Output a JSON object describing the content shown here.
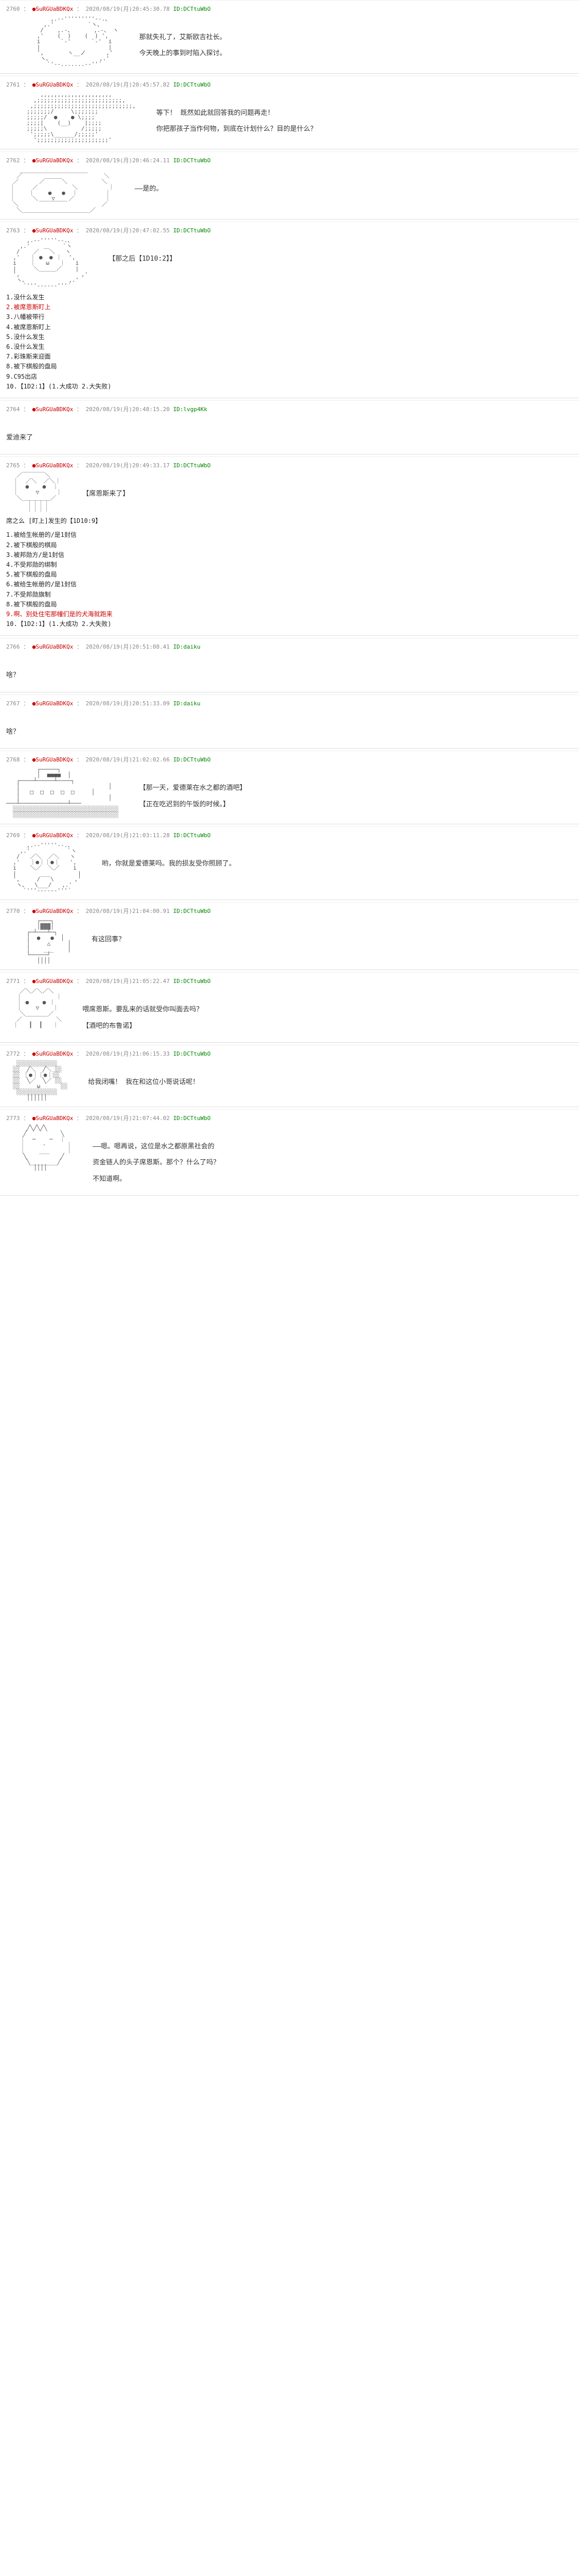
{
  "posts": [
    {
      "no": "2760",
      "id": "●SuRGUaBDKQx",
      "date": "2020/08/19(月)20:45:30.78",
      "host": "ID:DCTtuWbO",
      "aa": "             ,.-‐'''''''''‐-.、\n           ,.'          `ヽ、\n          /    ,.-、      ,.-、 ヽ\n         ,'    (  )    (  ) ',\n         i      `‐'      `‐'  i\n         |                    |\n         ',       ヽ__ノ      ,'\n          ヽ、              ,.'\n            `'‐-.......-‐''´",
      "lines": [
        "那就失礼了，艾斯欧吉社长。",
        "今天晚上的事到时陷入探讨。"
      ]
    },
    {
      "no": "2761",
      "id": "●SuRGUaBDKQx",
      "date": "2020/08/19(月)20:45:57.82",
      "host": "ID:DCTtuWbO",
      "aa": "          ,,,,,,,,,,,,,,,,,,,,,\n        ,;;;;;;;;;;;;;;;;;;;;;;;;;,\n       ,;;;;;;;;;;;;;;;;;;;;;;;;;;;;;,\n      ;;;;;;;/     \\;;;;;;;\n      ;;;;;/  ●    ● \\;;;;\n      ;;;;|    (__)    |;;;;\n      ;;;;;\\          /;;;;;\n       ';;;;;\\______/;;;;;'\n        ';;;;;;;;;;;;;;;;;;;;;'",
      "lines": [
        "等下！ 既然如此就回答我的问题再走！",
        "你把那孩子当作何物，到底在计划什么？目的是什么？"
      ]
    },
    {
      "no": "2762",
      "id": "●SuRGUaBDKQx",
      "date": "2020/08/19(月)20:46:24.11",
      "host": "ID:DCTtuWbO",
      "aa": "    ＿＿＿＿＿＿＿＿＿＿＿＿\n   ／                        ＼\n  ／      ／￣￣￣＼          ＼\n ｜     ／          ＼         ｜\n ｜    ｜    ●   ●  ｜        ｜\n ｜     ＼    ▽    ／         ｜\n  ＼      ￣￣￣￣￣          ／\n   ＼＿＿＿＿＿＿＿＿＿＿＿＿／",
      "lines": [
        "——是的。"
      ]
    },
    {
      "no": "2763",
      "id": "●SuRGUaBDKQx",
      "date": "2020/08/19(月)20:47:02.55",
      "host": "ID:DCTtuWbO",
      "aa": "      ,.-‐'''''‐-.、\n    ,.'    ＿    `ヽ\n   /    ／   ＼   ヽ\n  ,'   ｜ ●  ● ｜  ',\n  i    ｜   ω   ｜   i\n  |     ＼＿＿＿／    |\n  ',                  ,'\n   ヽ、            ,.'\n     `'''‐----‐'''´",
      "lines": [
        "【那之后【1D10:2】】"
      ],
      "dice": [
        "1.没什么发生",
        "2.被席恩斯盯上",
        "3.八幡被带行",
        "4.被席恩斯盯上",
        "5.没什么发生",
        "6.没什么发生",
        "7.彩珠斯来迎面",
        "8.被下棋般的盘局",
        "9.C95出店",
        "10.【1D2:1】(1.大成功  2.大失败)"
      ],
      "diceRed": [
        1
      ]
    },
    {
      "no": "2764",
      "id": "●SuRGUaBDKQx",
      "date": "2020/08/19(月)20:48:15.20",
      "host": "ID:lvgp4Kk",
      "aa": "",
      "lines": [
        "爱迪来了"
      ]
    },
    {
      "no": "2765",
      "id": "●SuRGUaBDKQx",
      "date": "2020/08/19(月)20:49:33.17",
      "host": "ID:DCTtuWbO",
      "aa": "   ／￣￣￣￣＼\n  ｜  ／＼  ／＼｜\n  ｜  ●    ●  ｜\n  ｜     ▽     ｜\n   ＼＿＿＿＿＿／\n      ｜｜｜｜\n      ｜｜｜｜",
      "lines": [
        "【席恩斯来了】"
      ],
      "dicePre": "席之么 [盯上]发生的【1D10:9】",
      "dice": [
        "1.被给生帐册的/是1封信",
        "2.被下棋般的棋局",
        "3.被邦勋方/是1封信",
        "4.不受邦勋的绑制",
        "5.被下棋般的盘局",
        "6.被给生帐册的/是1封信",
        "7.不受邦勋旗制",
        "8.被下棋般的盘局",
        "9.啊、别处住宅那幢们是的犬海就跑来",
        "10.【1D2:1】(1.大成功  2.大失败)"
      ],
      "diceRed": [
        8
      ]
    },
    {
      "no": "2766",
      "id": "●SuRGUaBDKQx",
      "date": "2020/08/19(月)20:51:08.41",
      "host": "ID:daiku",
      "aa": "",
      "lines": [
        "啥？"
      ]
    },
    {
      "no": "2767",
      "id": "●SuRGUaBDKQx",
      "date": "2020/08/19(月)20:51:33.09",
      "host": "ID:daiku",
      "aa": "",
      "lines": [
        "啥？"
      ]
    },
    {
      "no": "2768",
      "id": "●SuRGUaBDKQx",
      "date": "2020/08/19(月)21:02:02.66",
      "host": "ID:DCTtuWbO",
      "aa": "         ┌─────┐\n         │  ■■■■  │\n   ┌────┴─────┴────┐\n   │                          │\n   │   □  □  □  □  □     │\n   │                          │\n───┴──────────────┴───\n  ░░░░░░░░░░░░░░░░░░░░░░░░░░░░░░░\n  ░░░░░░░░░░░░░░░░░░░░░░░░░░░░░░░",
      "lines": [
        "【那一天，爱德莱在水之都的酒吧】",
        "【正在吃迟到的午饭的时候。】"
      ]
    },
    {
      "no": "2769",
      "id": "●SuRGUaBDKQx",
      "date": "2020/08/19(月)21:03:11.28",
      "host": "ID:DCTtuWbO",
      "aa": "      ,.-‐'''''‐-.、\n    ,.'           `ヽ\n   /   ／＼  ／＼   ヽ\n  ,'   ｜●｜｜●｜   ',\n  i    ＼／  ＼／    i\n  |       ___        |\n  ',     /   \\      ,'\n   ヽ、  \\___/   ,.'\n     `'''‐----‐'''´",
      "lines": [
        "哟，你就是爱德莱吗。我的损友受你照顾了。"
      ]
    },
    {
      "no": "2770",
      "id": "●SuRGUaBDKQx",
      "date": "2020/08/19(月)21:04:00.91",
      "host": "ID:DCTtuWbO",
      "aa": "         ┌───┐\n         │▓▓▓│\n      ┌─┴───┴─┐\n      │  ●   ●  │\n      │     △     │\n      │    ___    │\n      └─────┘\n         ││││",
      "lines": [
        "有这回事？"
      ]
    },
    {
      "no": "2771",
      "id": "●SuRGUaBDKQx",
      "date": "2020/08/19(月)21:05:22.47",
      "host": "ID:DCTtuWbO",
      "aa": "    ／＼／＼／＼\n   ｜          ｜\n   ｜ ●    ● ｜\n   ｜    ▽    ｜\n    ＼＿＿＿＿／\n   ／          ＼\n  ｜   ┃  ┃   ｜",
      "lines": [
        "喂席恩斯。要乱来的话就受你叫面去吗？",
        "【酒吧的布鲁诺】"
      ]
    },
    {
      "no": "2772",
      "id": "●SuRGUaBDKQx",
      "date": "2020/08/19(月)21:06:15.33",
      "host": "ID:DCTtuWbO",
      "aa": "   ░░░░░░░░░░░░\n  ░░  ╱＼  ╱＼ ░░\n  ░░ ｜●｜｜●｜░░\n  ░░  ╲／  ╲／ ░░\n  ░░     ω      ░░\n   ░░░░░░░░░░░░\n      ││││││",
      "lines": [
        "给我闭嘴！  我在和这位小哥说话呢！"
      ]
    },
    {
      "no": "2773",
      "id": "●SuRGUaBDKQx",
      "date": "2020/08/19(月)21:07:44.02",
      "host": "ID:DCTtuWbO",
      "aa": "      ╱╲╱╲╱╲\n     ╱          ╲\n    ｜  ─    ─  ｜\n    ｜     ·      ｜\n    ｜    ___     ｜\n     ╲          ╱\n      ╲________╱\n        ││││",
      "lines": [
        "——嗯。嗯再说，这位是水之都原黑社会的",
        "资金链人的头子席恩斯。那个？什么了吗？",
        "",
        "不知道啊。"
      ]
    }
  ],
  "colors": {
    "red": "#c00",
    "green": "#080",
    "gray": "#888"
  }
}
